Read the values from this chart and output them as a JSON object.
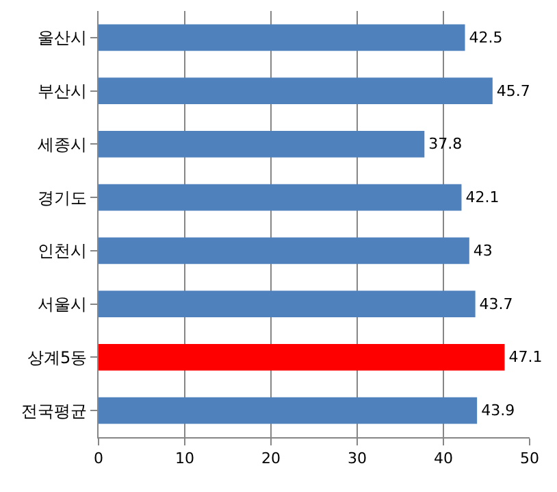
{
  "chart_data": {
    "type": "bar",
    "orientation": "horizontal",
    "categories": [
      "울산시",
      "부산시",
      "세종시",
      "경기도",
      "인천시",
      "서울시",
      "상계5동",
      "전국평균"
    ],
    "values": [
      42.5,
      45.7,
      37.8,
      42.1,
      43,
      43.7,
      47.1,
      43.9
    ],
    "colors": [
      "#4f81bd",
      "#4f81bd",
      "#4f81bd",
      "#4f81bd",
      "#4f81bd",
      "#4f81bd",
      "#ff0000",
      "#4f81bd"
    ],
    "xlim": [
      0,
      50
    ],
    "xticks": [
      0,
      10,
      20,
      30,
      40,
      50
    ],
    "grid": "x",
    "data_labels": true
  }
}
